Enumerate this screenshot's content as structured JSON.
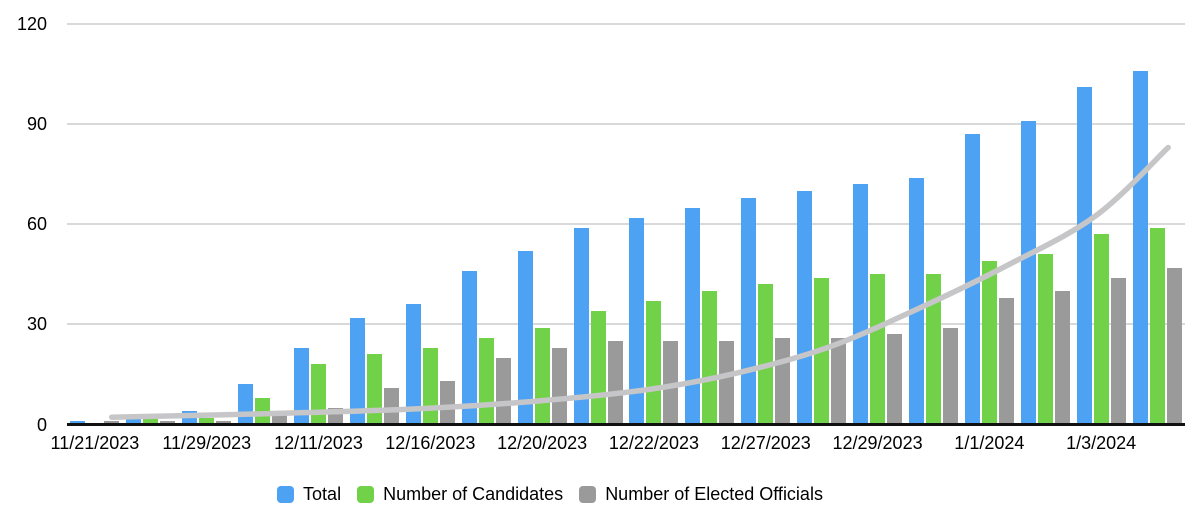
{
  "colors": {
    "background": "#ffffff",
    "axis_line": "#111111",
    "gridline": "#d9d9d9",
    "tick_label": "#000000",
    "total_blue": "#4da2f3",
    "candidates_green": "#71d148",
    "elected_gray": "#9a9a9a",
    "trendline_gray": "#c6c6c8"
  },
  "chart_data": {
    "type": "bar",
    "title": "",
    "xlabel": "",
    "ylabel": "",
    "ylim": [
      0,
      120
    ],
    "y_ticks": [
      0,
      30,
      60,
      90,
      120
    ],
    "grid": "horizontal",
    "legend_position": "bottom",
    "categories": [
      "11/21/2023",
      "",
      "11/29/2023",
      "",
      "12/11/2023",
      "",
      "12/16/2023",
      "",
      "12/20/2023",
      "",
      "12/22/2023",
      "",
      "12/27/2023",
      "",
      "12/29/2023",
      "",
      "1/1/2024",
      "",
      "1/3/2024",
      ""
    ],
    "x_tick_labels": [
      "11/21/2023",
      "11/29/2023",
      "12/11/2023",
      "12/16/2023",
      "12/20/2023",
      "12/22/2023",
      "12/27/2023",
      "12/29/2023",
      "1/1/2024",
      "1/3/2024"
    ],
    "series": [
      {
        "name": "Total",
        "color": "#4da2f3",
        "values": [
          1,
          2,
          4,
          12,
          23,
          32,
          36,
          46,
          52,
          59,
          62,
          65,
          68,
          70,
          72,
          74,
          87,
          91,
          101,
          106
        ]
      },
      {
        "name": "Number of Candidates",
        "color": "#71d148",
        "values": [
          0,
          2,
          2,
          8,
          18,
          21,
          23,
          26,
          29,
          34,
          37,
          40,
          42,
          44,
          45,
          45,
          49,
          51,
          57,
          59
        ]
      },
      {
        "name": "Number of Elected Officials",
        "color": "#9a9a9a",
        "values": [
          1,
          1,
          1,
          3,
          5,
          11,
          13,
          20,
          23,
          25,
          25,
          25,
          26,
          26,
          27,
          29,
          38,
          40,
          44,
          47
        ]
      }
    ],
    "trendline": {
      "color": "#c6c6c8",
      "points": [
        [
          0.04,
          2.2
        ],
        [
          0.15,
          3.0
        ],
        [
          0.3,
          4.5
        ],
        [
          0.42,
          7.0
        ],
        [
          0.52,
          10.5
        ],
        [
          0.6,
          15.5
        ],
        [
          0.68,
          23
        ],
        [
          0.76,
          34.5
        ],
        [
          0.84,
          47.5
        ],
        [
          0.92,
          62.5
        ],
        [
          0.985,
          83
        ]
      ]
    }
  },
  "legend": {
    "items": [
      {
        "label": "Total"
      },
      {
        "label": "Number of Candidates"
      },
      {
        "label": "Number of Elected Officials"
      }
    ]
  }
}
